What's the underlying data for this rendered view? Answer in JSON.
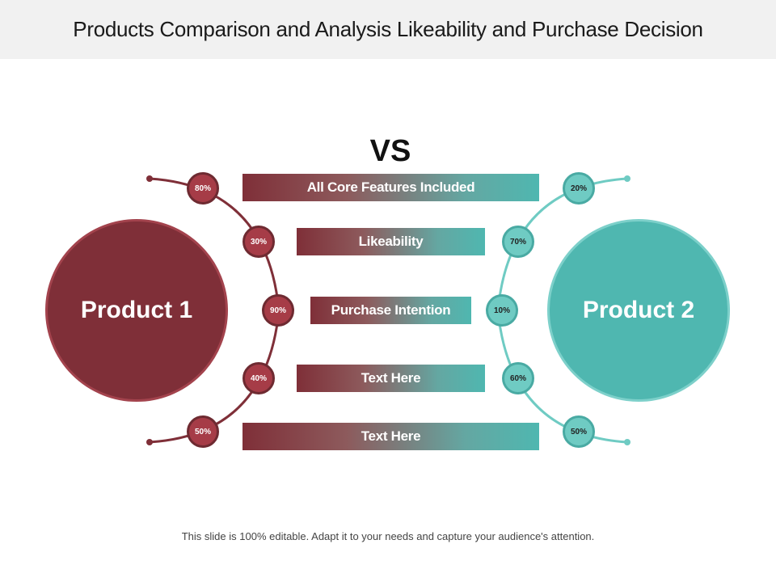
{
  "title": "Products Comparison and Analysis Likeability and Purchase Decision",
  "vs_label": "VS",
  "products": {
    "left": {
      "name": "Product 1",
      "color": "#7f2f38"
    },
    "right": {
      "name": "Product 2",
      "color": "#4fb7b0"
    }
  },
  "rows": [
    {
      "label": "All Core Features Included",
      "left_pct": "80%",
      "right_pct": "20%"
    },
    {
      "label": "Likeability",
      "left_pct": "30%",
      "right_pct": "70%"
    },
    {
      "label": "Purchase Intention",
      "left_pct": "90%",
      "right_pct": "10%"
    },
    {
      "label": "Text Here",
      "left_pct": "40%",
      "right_pct": "60%"
    },
    {
      "label": "Text Here",
      "left_pct": "50%",
      "right_pct": "50%"
    }
  ],
  "footer": "This slide is 100% editable. Adapt it to your needs and capture your audience's attention."
}
